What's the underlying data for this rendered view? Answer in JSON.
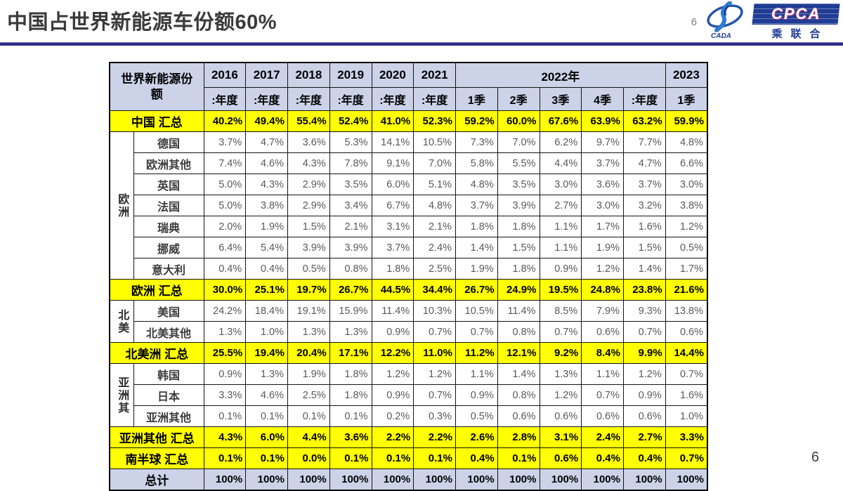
{
  "slide": {
    "title": "中国占世界新能源车份额60%",
    "page_number_top": "6",
    "page_number_bottom": "6",
    "accent_color": "#2b2b8a"
  },
  "logo": {
    "cada_text": "CADA",
    "cpca_text": "CPCA",
    "cpca_subtext": "乘联合",
    "navy": "#1f3d94"
  },
  "table": {
    "corner": "世界新能源份额",
    "header_groups": [
      {
        "label": "2016",
        "subs": [
          ":年度"
        ]
      },
      {
        "label": "2017",
        "subs": [
          ":年度"
        ]
      },
      {
        "label": "2018",
        "subs": [
          ":年度"
        ]
      },
      {
        "label": "2019",
        "subs": [
          ":年度"
        ]
      },
      {
        "label": "2020",
        "subs": [
          ":年度"
        ]
      },
      {
        "label": "2021",
        "subs": [
          ":年度"
        ]
      },
      {
        "label": "2022年",
        "subs": [
          "1季",
          "2季",
          "3季",
          "4季",
          ":年度"
        ]
      },
      {
        "label": "2023",
        "subs": [
          "1季"
        ]
      }
    ],
    "highlight_yellow": "#ffff00",
    "header_fill": "#ccd3e8",
    "rows": [
      {
        "style": "summary",
        "label": "中国 汇总",
        "values": [
          "40.2%",
          "49.4%",
          "55.4%",
          "52.4%",
          "41.0%",
          "52.3%",
          "59.2%",
          "60.0%",
          "67.6%",
          "63.9%",
          "63.2%",
          "59.9%"
        ]
      },
      {
        "style": "country",
        "region": "欧洲",
        "region_span": 7,
        "label": "德国",
        "values": [
          "3.7%",
          "4.7%",
          "3.6%",
          "5.3%",
          "14.1%",
          "10.5%",
          "7.3%",
          "7.0%",
          "6.2%",
          "9.7%",
          "7.7%",
          "4.8%"
        ]
      },
      {
        "style": "country",
        "label": "欧洲其他",
        "values": [
          "7.4%",
          "4.6%",
          "4.3%",
          "7.8%",
          "9.1%",
          "7.0%",
          "5.8%",
          "5.5%",
          "4.4%",
          "3.7%",
          "4.7%",
          "6.6%"
        ]
      },
      {
        "style": "country",
        "label": "英国",
        "values": [
          "5.0%",
          "4.3%",
          "2.9%",
          "3.5%",
          "6.0%",
          "5.1%",
          "4.8%",
          "3.5%",
          "3.0%",
          "3.6%",
          "3.7%",
          "3.0%"
        ]
      },
      {
        "style": "country",
        "label": "法国",
        "values": [
          "5.0%",
          "3.8%",
          "2.9%",
          "3.4%",
          "6.7%",
          "4.8%",
          "3.7%",
          "3.9%",
          "2.7%",
          "3.0%",
          "3.2%",
          "3.8%"
        ]
      },
      {
        "style": "country",
        "label": "瑞典",
        "values": [
          "2.0%",
          "1.9%",
          "1.5%",
          "2.1%",
          "3.1%",
          "2.1%",
          "1.8%",
          "1.8%",
          "1.1%",
          "1.7%",
          "1.6%",
          "1.2%"
        ]
      },
      {
        "style": "country",
        "label": "挪威",
        "values": [
          "6.4%",
          "5.4%",
          "3.9%",
          "3.9%",
          "3.7%",
          "2.4%",
          "1.4%",
          "1.5%",
          "1.1%",
          "1.9%",
          "1.5%",
          "0.5%"
        ]
      },
      {
        "style": "country",
        "label": "意大利",
        "values": [
          "0.4%",
          "0.4%",
          "0.5%",
          "0.8%",
          "1.8%",
          "2.5%",
          "1.9%",
          "1.8%",
          "0.9%",
          "1.2%",
          "1.4%",
          "1.7%"
        ]
      },
      {
        "style": "summary",
        "label": "欧洲 汇总",
        "values": [
          "30.0%",
          "25.1%",
          "19.7%",
          "26.7%",
          "44.5%",
          "34.4%",
          "26.7%",
          "24.9%",
          "19.5%",
          "24.8%",
          "23.8%",
          "21.6%"
        ]
      },
      {
        "style": "country",
        "region": "北美",
        "region_span": 2,
        "label": "美国",
        "values": [
          "24.2%",
          "18.4%",
          "19.1%",
          "15.9%",
          "11.4%",
          "10.3%",
          "10.5%",
          "11.4%",
          "8.5%",
          "7.9%",
          "9.3%",
          "13.8%"
        ]
      },
      {
        "style": "country",
        "label": "北美其他",
        "values": [
          "1.3%",
          "1.0%",
          "1.3%",
          "1.3%",
          "0.9%",
          "0.7%",
          "0.7%",
          "0.8%",
          "0.7%",
          "0.6%",
          "0.7%",
          "0.6%"
        ]
      },
      {
        "style": "summary",
        "label": "北美洲 汇总",
        "values": [
          "25.5%",
          "19.4%",
          "20.4%",
          "17.1%",
          "12.2%",
          "11.0%",
          "11.2%",
          "12.1%",
          "9.2%",
          "8.4%",
          "9.9%",
          "14.4%"
        ]
      },
      {
        "style": "country",
        "region": "亚洲其",
        "region_span": 3,
        "label": "韩国",
        "values": [
          "0.9%",
          "1.3%",
          "1.9%",
          "1.8%",
          "1.2%",
          "1.2%",
          "1.1%",
          "1.4%",
          "1.3%",
          "1.1%",
          "1.2%",
          "0.7%"
        ]
      },
      {
        "style": "country",
        "label": "日本",
        "values": [
          "3.3%",
          "4.6%",
          "2.5%",
          "1.8%",
          "0.9%",
          "0.7%",
          "0.9%",
          "0.8%",
          "1.2%",
          "0.7%",
          "0.9%",
          "1.6%"
        ]
      },
      {
        "style": "country",
        "label": "亚洲其他",
        "values": [
          "0.1%",
          "0.1%",
          "0.1%",
          "0.1%",
          "0.2%",
          "0.3%",
          "0.5%",
          "0.6%",
          "0.6%",
          "0.6%",
          "0.6%",
          "1.0%"
        ]
      },
      {
        "style": "summary",
        "label": "亚洲其他 汇总",
        "values": [
          "4.3%",
          "6.0%",
          "4.4%",
          "3.6%",
          "2.2%",
          "2.2%",
          "2.6%",
          "2.8%",
          "3.1%",
          "2.4%",
          "2.7%",
          "3.3%"
        ]
      },
      {
        "style": "summary",
        "label": "南半球 汇总",
        "values": [
          "0.1%",
          "0.1%",
          "0.0%",
          "0.1%",
          "0.1%",
          "0.1%",
          "0.4%",
          "0.1%",
          "0.6%",
          "0.4%",
          "0.4%",
          "0.7%"
        ]
      },
      {
        "style": "total",
        "label": "总计",
        "values": [
          "100%",
          "100%",
          "100%",
          "100%",
          "100%",
          "100%",
          "100%",
          "100%",
          "100%",
          "100%",
          "100%",
          "100%"
        ]
      }
    ]
  }
}
